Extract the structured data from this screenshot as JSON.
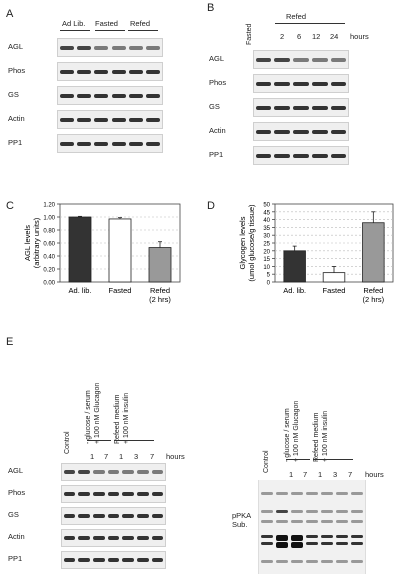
{
  "panelA": {
    "letter": "A",
    "groups": [
      "Ad Lib.",
      "Fasted",
      "Refed"
    ],
    "rows": [
      "AGL",
      "Phos",
      "GS",
      "Actin",
      "PP1"
    ]
  },
  "panelB": {
    "letter": "B",
    "fasted": "Fasted",
    "refed": "Refed",
    "times": [
      "2",
      "6",
      "12",
      "24"
    ],
    "unit": "hours",
    "rows": [
      "AGL",
      "Phos",
      "GS",
      "Actin",
      "PP1"
    ]
  },
  "panelC": {
    "letter": "C",
    "chart_data": {
      "type": "bar",
      "categories": [
        "Ad. lib.",
        "Fasted",
        "Refed (2 hrs)"
      ],
      "category_lines": [
        [
          "Ad. lib."
        ],
        [
          "Fasted"
        ],
        [
          "Refed",
          "(2 hrs)"
        ]
      ],
      "values": [
        1.0,
        0.97,
        0.53
      ],
      "errors": [
        0.01,
        0.02,
        0.09
      ],
      "colors": [
        "#333333",
        "#ffffff",
        "#999999"
      ],
      "ylabel_lines": [
        "AGL levels",
        "(arbitrary units)"
      ],
      "yticks": [
        "0.00",
        "0.20",
        "0.40",
        "0.60",
        "0.80",
        "1.00",
        "1.20"
      ],
      "ylim": [
        0,
        1.2
      ]
    }
  },
  "panelD": {
    "letter": "D",
    "chart_data": {
      "type": "bar",
      "categories": [
        "Ad. lib.",
        "Fasted",
        "Refed (2 hrs)"
      ],
      "category_lines": [
        [
          "Ad. lib."
        ],
        [
          "Fasted"
        ],
        [
          "Refed",
          "(2 hrs)"
        ]
      ],
      "values": [
        20,
        6,
        38
      ],
      "errors": [
        3,
        4,
        7
      ],
      "colors": [
        "#333333",
        "#ffffff",
        "#999999"
      ],
      "ylabel_lines": [
        "Glycogen levels",
        "(umol glucose/g tissue)"
      ],
      "yticks": [
        "0",
        "5",
        "10",
        "15",
        "20",
        "25",
        "30",
        "35",
        "40",
        "45",
        "50"
      ],
      "ylim": [
        0,
        50
      ]
    }
  },
  "panelE": {
    "letter": "E",
    "control": "Control",
    "cond1": [
      "- glucose / serum",
      "+ 100 nM Glucagon"
    ],
    "cond2": [
      "Refeed medium",
      "+ 100 nM insulin"
    ],
    "timesLeft": [
      "1",
      "7",
      "1",
      "3",
      "7"
    ],
    "timesRight": [
      "1",
      "7",
      "1",
      "3",
      "7"
    ],
    "unit": "hours",
    "rows": [
      "AGL",
      "Phos",
      "GS",
      "Actin",
      "PP1"
    ],
    "ppka": [
      "pPKA",
      "Sub."
    ]
  }
}
